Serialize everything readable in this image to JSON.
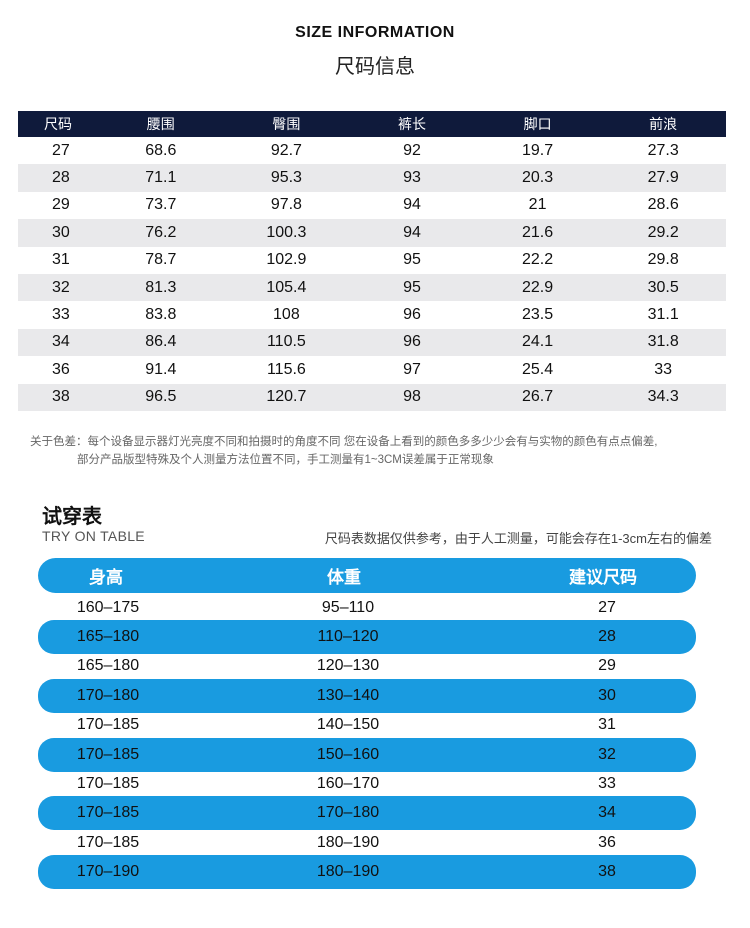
{
  "header": {
    "title_en": "SIZE INFORMATION",
    "title_cn": "尺码信息"
  },
  "size_table": {
    "columns": [
      "尺码",
      "腰围",
      "臀围",
      "裤长",
      "脚口",
      "前浪"
    ],
    "rows": [
      [
        "27",
        "68.6",
        "92.7",
        "92",
        "19.7",
        "27.3"
      ],
      [
        "28",
        "71.1",
        "95.3",
        "93",
        "20.3",
        "27.9"
      ],
      [
        "29",
        "73.7",
        "97.8",
        "94",
        "21",
        "28.6"
      ],
      [
        "30",
        "76.2",
        "100.3",
        "94",
        "21.6",
        "29.2"
      ],
      [
        "31",
        "78.7",
        "102.9",
        "95",
        "22.2",
        "29.8"
      ],
      [
        "32",
        "81.3",
        "105.4",
        "95",
        "22.9",
        "30.5"
      ],
      [
        "33",
        "83.8",
        "108",
        "96",
        "23.5",
        "31.1"
      ],
      [
        "34",
        "86.4",
        "110.5",
        "96",
        "24.1",
        "31.8"
      ],
      [
        "36",
        "91.4",
        "115.6",
        "97",
        "25.4",
        "33"
      ],
      [
        "38",
        "96.5",
        "120.7",
        "98",
        "26.7",
        "34.3"
      ]
    ]
  },
  "color_note": {
    "line1": "关于色差：每个设备显示器灯光亮度不同和拍摄时的角度不同 您在设备上看到的颜色多多少少会有与实物的颜色有点点偏差,",
    "line2": "部分产品版型特殊及个人测量方法位置不同，手工测量有1~3CM误差属于正常现象"
  },
  "try_on": {
    "title_cn": "试穿表",
    "title_en": "TRY ON TABLE",
    "note": "尺码表数据仅供参考，由于人工测量，可能会存在1-3cm左右的偏差",
    "columns": [
      "身高",
      "体重",
      "建议尺码"
    ],
    "rows": [
      [
        "160–175",
        "95–110",
        "27"
      ],
      [
        "165–180",
        "110–120",
        "28"
      ],
      [
        "165–180",
        "120–130",
        "29"
      ],
      [
        "170–180",
        "130–140",
        "30"
      ],
      [
        "170–185",
        "140–150",
        "31"
      ],
      [
        "170–185",
        "150–160",
        "32"
      ],
      [
        "170–185",
        "160–170",
        "33"
      ],
      [
        "170–185",
        "170–180",
        "34"
      ],
      [
        "170–185",
        "180–190",
        "36"
      ],
      [
        "170–190",
        "180–190",
        "38"
      ]
    ]
  },
  "colors": {
    "navy_header": "#0f1a3b",
    "blue_band": "#199be0",
    "stripe_gray": "#e9e9eb"
  }
}
